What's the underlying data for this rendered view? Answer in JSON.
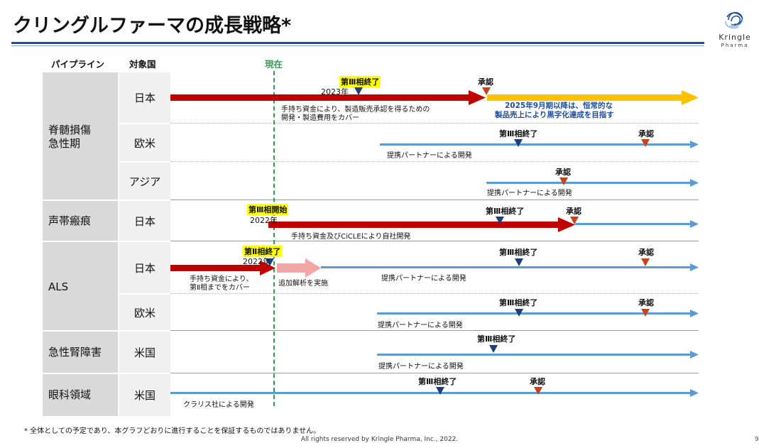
{
  "title": "クリングルファーマの成長戦略*",
  "logo": {
    "name": "Kringle",
    "sub": "Pharma"
  },
  "headers": {
    "pipeline": "パイプライン",
    "country": "対象国",
    "now": "現在"
  },
  "pipelines": [
    {
      "name": "脊髄損傷\n急性期",
      "name_line1": "脊髄損傷",
      "name_line2": "急性期",
      "countries": [
        "日本",
        "欧米",
        "アジア"
      ]
    },
    {
      "name": "声帯瘢痕",
      "countries": [
        "日本"
      ]
    },
    {
      "name": "ALS",
      "countries": [
        "日本",
        "欧米"
      ]
    },
    {
      "name": "急性腎障害",
      "countries": [
        "米国"
      ]
    },
    {
      "name": "眼科領域",
      "countries": [
        "米国"
      ]
    }
  ],
  "milestones": {
    "phase3_end": "第Ⅲ相終了",
    "phase3_start": "第Ⅲ相開始",
    "phase2_end": "第Ⅱ相終了",
    "approval": "承認",
    "year_2023": "2023年",
    "year_2022": "2022年"
  },
  "notes": {
    "sci_japan_funding_l1": "手持ち資金により、製造販売承認を得るための",
    "sci_japan_funding_l2": "開発・製造費用をカバー",
    "sci_goal_l1": "2025年9月期以降は、恒常的な",
    "sci_goal_l2": "製品売上により黒字化達成を目指す",
    "partner_dev": "提携パートナーによる開発",
    "vocal_dev": "手持ち資金及びCiCLEにより自社開発",
    "als_funding_l1": "手持ち資金により、",
    "als_funding_l2": "第Ⅱ相までをカバー",
    "als_additional": "追加解析を実施",
    "ophth_dev": "クラリス社による開発"
  },
  "footnote": "* 全体としての予定であり、本グラフどおりに進行することを保証するものではありません。",
  "copyright": "All rights reserved by Kringle Pharma, Inc., 2022.",
  "page_number": "9",
  "colors": {
    "red_arrow": "#c00000",
    "yellow_arrow": "#ffc000",
    "blue_arrow": "#5b9bd5",
    "pink_arrow": "#f4a6a6",
    "phase_marker": "#1f3f7a",
    "approval_marker": "#c5421a",
    "now_line": "#2e9e4e",
    "rule": "#1f4e9e"
  }
}
